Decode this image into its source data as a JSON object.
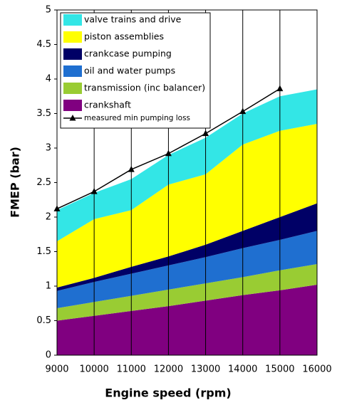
{
  "chart_data": {
    "type": "stacked_area",
    "x_label": "Engine speed (rpm)",
    "y_label": "FMEP (bar)",
    "x": [
      9000,
      10000,
      11000,
      12000,
      13000,
      14000,
      15000,
      16000
    ],
    "series": [
      {
        "name": "crankshaft",
        "color": "#800080",
        "values": [
          0.5,
          0.57,
          0.64,
          0.71,
          0.79,
          0.87,
          0.94,
          1.02
        ]
      },
      {
        "name": "transmission (inc balancer)",
        "color": "#99cc33",
        "values": [
          0.18,
          0.2,
          0.22,
          0.24,
          0.25,
          0.26,
          0.29,
          0.3
        ]
      },
      {
        "name": "oil and water pumps",
        "color": "#1f6fd0",
        "values": [
          0.25,
          0.29,
          0.32,
          0.35,
          0.38,
          0.42,
          0.44,
          0.48
        ]
      },
      {
        "name": "crankcase pumping",
        "color": "#000066",
        "values": [
          0.05,
          0.06,
          0.1,
          0.13,
          0.18,
          0.25,
          0.33,
          0.4
        ]
      },
      {
        "name": "piston assemblies",
        "color": "#ffff00",
        "values": [
          0.67,
          0.85,
          0.82,
          1.04,
          1.02,
          1.25,
          1.25,
          1.15
        ]
      },
      {
        "name": "valve trains and drive",
        "color": "#33e6e6",
        "values": [
          0.45,
          0.38,
          0.45,
          0.43,
          0.53,
          0.45,
          0.5,
          0.5
        ]
      }
    ],
    "line": {
      "name": "measured min pumping loss",
      "color": "#000000",
      "x": [
        9000,
        10000,
        11000,
        12000,
        13000,
        14000,
        15000
      ],
      "values": [
        2.12,
        2.37,
        2.69,
        2.92,
        3.21,
        3.53,
        3.86
      ]
    },
    "xlim": [
      9000,
      16000
    ],
    "xticks": [
      9000,
      10000,
      11000,
      12000,
      13000,
      14000,
      15000,
      16000
    ],
    "ylim": [
      0,
      5
    ],
    "yticks": [
      0,
      0.5,
      1,
      1.5,
      2,
      2.5,
      3,
      3.5,
      4,
      4.5,
      5
    ],
    "grid": "x"
  }
}
